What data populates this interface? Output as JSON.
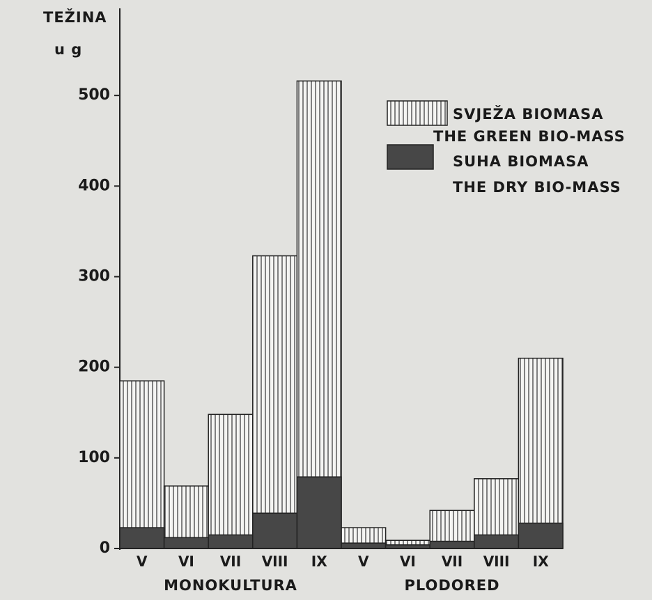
{
  "chart_data": {
    "type": "bar",
    "y_label": "TEŽINA",
    "y_unit": "u g",
    "categories": [
      "V",
      "VI",
      "VII",
      "VIII",
      "IX",
      "V",
      "VI",
      "VII",
      "VIII",
      "IX"
    ],
    "groups": [
      "MONOKULTURA",
      "PLODORED"
    ],
    "series": [
      {
        "name": "SVJEŽA BIOMASA",
        "name_en": "THE GREEN BIO-MASS",
        "color": "#ffffff",
        "pattern": "vertical-hatch",
        "values": [
          185,
          69,
          148,
          323,
          516,
          23,
          9,
          42,
          77,
          210
        ]
      },
      {
        "name": "SUHA BIOMASA",
        "name_en": "THE DRY BIO-MASS",
        "color": "#474747",
        "values": [
          23,
          12,
          15,
          39,
          79,
          6,
          4,
          8,
          15,
          28
        ]
      }
    ],
    "ylim": [
      0,
      590
    ],
    "yticks": [
      0,
      100,
      200,
      300,
      400,
      500
    ],
    "grid": false
  }
}
